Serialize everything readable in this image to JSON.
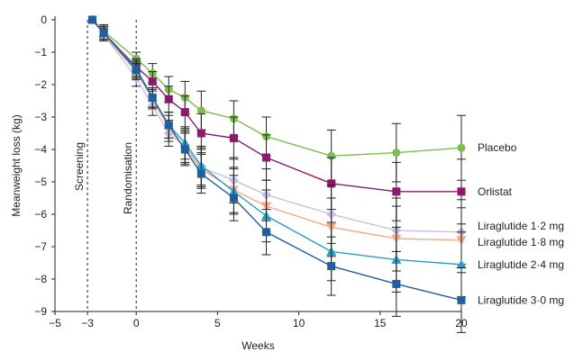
{
  "chart_data": {
    "type": "line",
    "title": "",
    "xlabel": "Weeks",
    "ylabel": "Meanweight loss (kg)",
    "xlim": [
      -5,
      20
    ],
    "ylim": [
      -9,
      0
    ],
    "xticks": [
      -5,
      -3,
      0,
      5,
      10,
      15,
      20
    ],
    "yticks": [
      0,
      -1,
      -2,
      -3,
      -4,
      -5,
      -6,
      -7,
      -8,
      -9
    ],
    "grid": false,
    "legend": "inline labels at right end of each series",
    "annotations": [
      {
        "text": "Screening",
        "x": -3
      },
      {
        "text": "Randomisation",
        "x": 0
      }
    ],
    "x": [
      -2.7,
      -2,
      0,
      1,
      2,
      3,
      4,
      6,
      8,
      12,
      16,
      20
    ],
    "series": [
      {
        "name": "Placebo",
        "color": "#7cbf4c",
        "marker": "circle",
        "values": [
          0,
          -0.35,
          -1.2,
          -1.65,
          -2.15,
          -2.4,
          -2.8,
          -3.05,
          -3.6,
          -4.2,
          -4.1,
          -3.95
        ],
        "errors": [
          0,
          0.2,
          0.2,
          0.3,
          0.4,
          0.5,
          0.6,
          0.55,
          0.6,
          0.8,
          0.9,
          1.0
        ]
      },
      {
        "name": "Orlistat",
        "color": "#8b1a6e",
        "marker": "square",
        "values": [
          0,
          -0.4,
          -1.45,
          -1.9,
          -2.45,
          -2.85,
          -3.5,
          -3.65,
          -4.25,
          -5.05,
          -5.3,
          -5.3
        ],
        "errors": [
          0,
          0.2,
          0.25,
          0.3,
          0.4,
          0.5,
          0.6,
          0.65,
          0.7,
          0.8,
          0.9,
          1.0
        ]
      },
      {
        "name": "Liraglutide 1·2 mg",
        "color": "#c8c0e0",
        "marker": "diamond",
        "values": [
          0,
          -0.45,
          -1.8,
          -2.65,
          -3.5,
          -3.9,
          -4.55,
          -4.95,
          -5.4,
          -6.0,
          -6.5,
          -6.55
        ],
        "errors": [
          0,
          0.2,
          0.25,
          0.3,
          0.4,
          0.5,
          0.6,
          0.7,
          0.8,
          0.9,
          1.0,
          1.0
        ]
      },
      {
        "name": "Liraglutide 1·8 mg",
        "color": "#f2a98a",
        "marker": "triangle-down",
        "values": [
          0,
          -0.45,
          -1.6,
          -2.45,
          -3.35,
          -3.95,
          -4.6,
          -5.25,
          -5.75,
          -6.4,
          -6.75,
          -6.8
        ],
        "errors": [
          0,
          0.2,
          0.25,
          0.3,
          0.4,
          0.5,
          0.6,
          0.7,
          0.8,
          0.9,
          1.0,
          1.0
        ]
      },
      {
        "name": "Liraglutide 2·4 mg",
        "color": "#2a9cc0",
        "marker": "triangle",
        "values": [
          0,
          -0.4,
          -1.5,
          -2.4,
          -3.25,
          -3.8,
          -4.5,
          -5.3,
          -6.05,
          -7.15,
          -7.4,
          -7.55
        ],
        "errors": [
          0,
          0.2,
          0.25,
          0.3,
          0.4,
          0.5,
          0.6,
          0.7,
          0.8,
          0.9,
          1.0,
          1.0
        ]
      },
      {
        "name": "Liraglutide 3·0 mg",
        "color": "#1f5fa0",
        "marker": "square",
        "values": [
          0,
          -0.4,
          -1.55,
          -2.4,
          -3.25,
          -4.0,
          -4.75,
          -5.5,
          -6.55,
          -7.6,
          -8.15,
          -8.65
        ],
        "errors": [
          0,
          0.2,
          0.25,
          0.3,
          0.4,
          0.5,
          0.6,
          0.7,
          0.7,
          0.9,
          1.0,
          1.0
        ]
      }
    ]
  }
}
